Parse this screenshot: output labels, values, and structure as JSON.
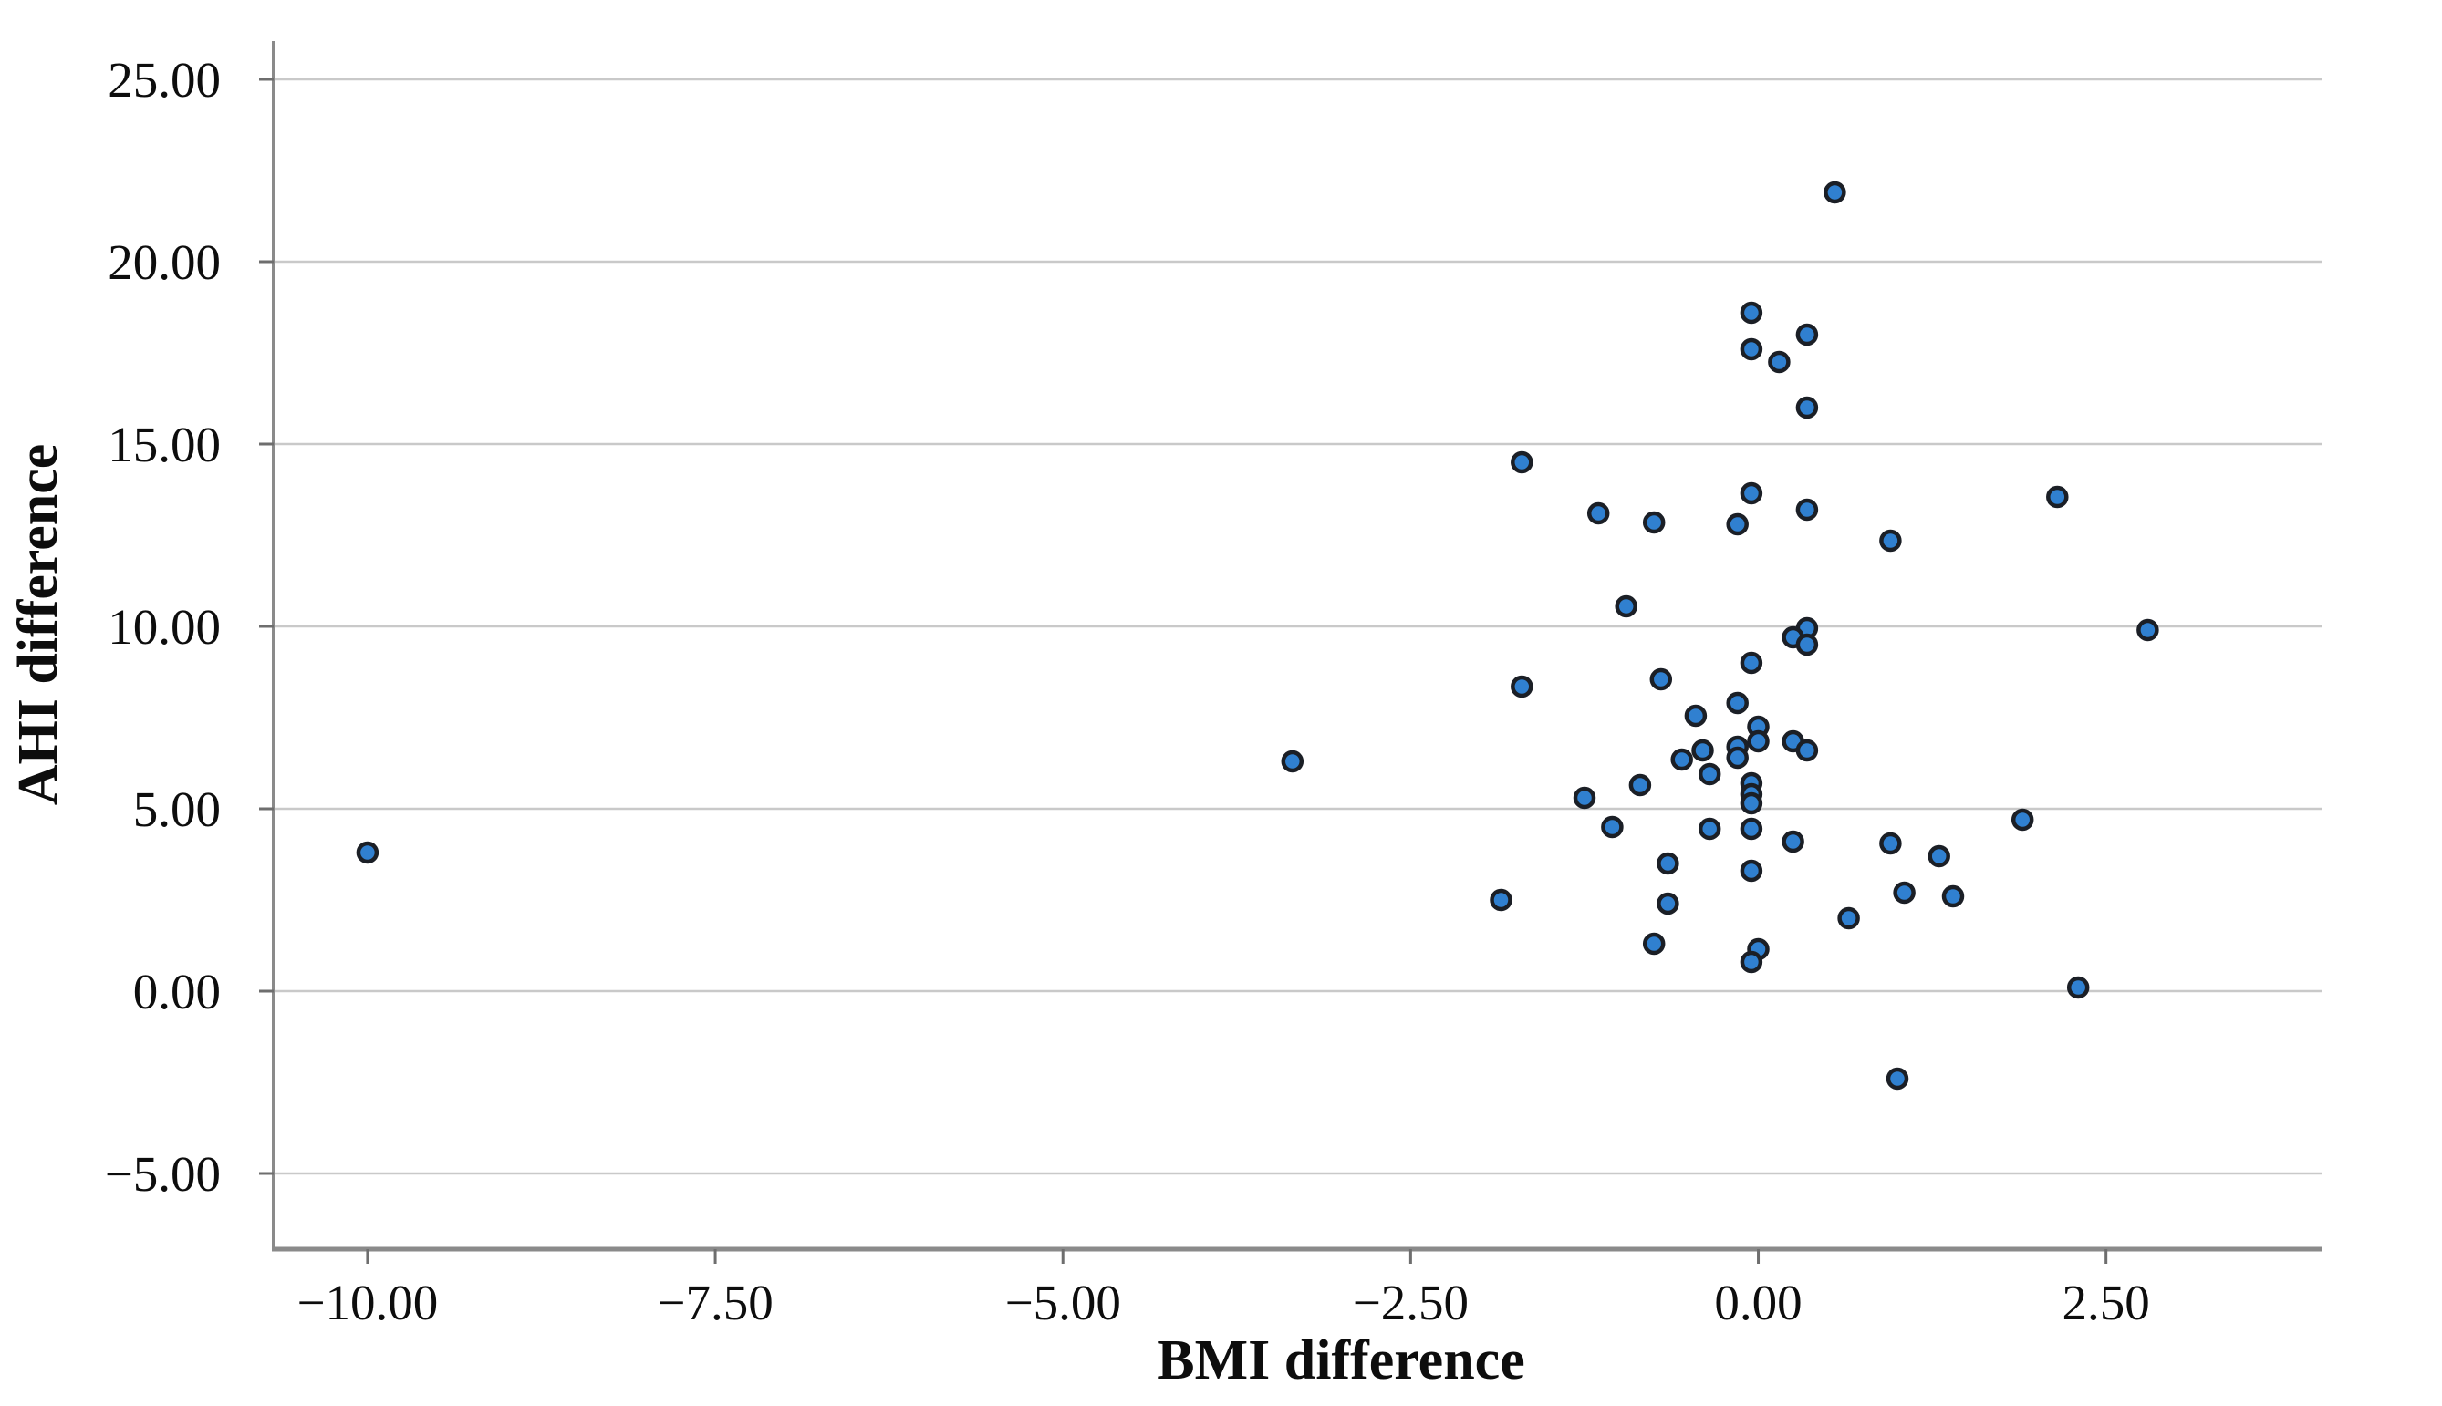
{
  "chart_data": {
    "type": "scatter",
    "title": "",
    "xlabel": "BMI difference",
    "ylabel": "AHI difference",
    "xlim": [
      -10.675,
      4.05
    ],
    "ylim": [
      -7.075,
      26.05
    ],
    "grid": "horizontal-only",
    "legend": "none",
    "xticks": [
      {
        "value": -10,
        "label": "−10.00"
      },
      {
        "value": -7.5,
        "label": "−7.50"
      },
      {
        "value": -5,
        "label": "−5.00"
      },
      {
        "value": -2.5,
        "label": "−2.50"
      },
      {
        "value": 0,
        "label": "0.00"
      },
      {
        "value": 2.5,
        "label": "2.50"
      }
    ],
    "yticks": [
      {
        "value": 25,
        "label": "25.00"
      },
      {
        "value": 20,
        "label": "20.00"
      },
      {
        "value": 15,
        "label": "15.00"
      },
      {
        "value": 10,
        "label": "10.00"
      },
      {
        "value": 5,
        "label": "5.00"
      },
      {
        "value": 0,
        "label": "0.00"
      },
      {
        "value": -5,
        "label": "−5.00"
      }
    ],
    "points": [
      [
        0.55,
        21.9
      ],
      [
        -0.05,
        18.6
      ],
      [
        0.35,
        18.0
      ],
      [
        -0.05,
        17.6
      ],
      [
        0.15,
        17.25
      ],
      [
        0.35,
        16.0
      ],
      [
        -1.7,
        14.5
      ],
      [
        -0.05,
        13.65
      ],
      [
        2.15,
        13.55
      ],
      [
        0.35,
        13.2
      ],
      [
        -1.15,
        13.1
      ],
      [
        -0.75,
        12.85
      ],
      [
        -0.15,
        12.8
      ],
      [
        0.95,
        12.35
      ],
      [
        -0.95,
        10.55
      ],
      [
        0.35,
        9.95
      ],
      [
        2.8,
        9.9
      ],
      [
        0.25,
        9.7
      ],
      [
        0.35,
        9.5
      ],
      [
        -0.05,
        9.0
      ],
      [
        -0.7,
        8.55
      ],
      [
        -1.7,
        8.35
      ],
      [
        -0.15,
        7.9
      ],
      [
        -0.45,
        7.55
      ],
      [
        0.0,
        7.25
      ],
      [
        0.0,
        6.85
      ],
      [
        0.25,
        6.85
      ],
      [
        -0.15,
        6.7
      ],
      [
        0.35,
        6.6
      ],
      [
        -0.4,
        6.6
      ],
      [
        -0.15,
        6.4
      ],
      [
        -0.55,
        6.35
      ],
      [
        -3.35,
        6.3
      ],
      [
        -0.35,
        5.95
      ],
      [
        -0.05,
        5.7
      ],
      [
        -0.85,
        5.65
      ],
      [
        -0.05,
        5.4
      ],
      [
        -1.25,
        5.3
      ],
      [
        -0.05,
        5.15
      ],
      [
        1.9,
        4.7
      ],
      [
        -1.05,
        4.5
      ],
      [
        -0.35,
        4.45
      ],
      [
        -0.05,
        4.45
      ],
      [
        0.25,
        4.1
      ],
      [
        0.95,
        4.05
      ],
      [
        -10.0,
        3.8
      ],
      [
        1.3,
        3.7
      ],
      [
        -0.65,
        3.5
      ],
      [
        -0.05,
        3.3
      ],
      [
        1.05,
        2.7
      ],
      [
        1.4,
        2.6
      ],
      [
        -1.85,
        2.5
      ],
      [
        -0.65,
        2.4
      ],
      [
        0.65,
        2.0
      ],
      [
        -0.75,
        1.3
      ],
      [
        0.0,
        1.15
      ],
      [
        -0.05,
        0.8
      ],
      [
        2.3,
        0.1
      ],
      [
        1.0,
        -2.4
      ]
    ]
  },
  "colors": {
    "point_fill": "#3080d0",
    "point_stroke": "#1b1f26",
    "gridline": "#c9c9c9",
    "axis_line": "#8a8a8a",
    "tick_mark": "#6e6e6e",
    "text": "#0d0d0d",
    "background": "#ffffff"
  }
}
